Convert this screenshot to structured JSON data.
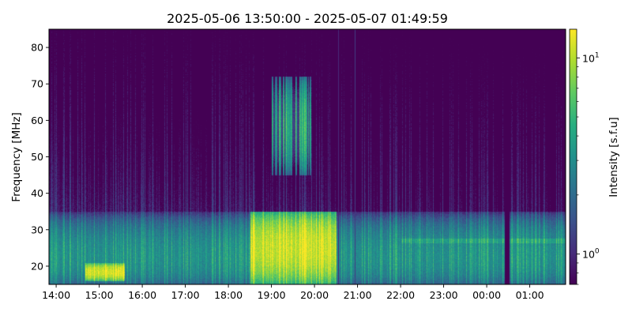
{
  "chart_data": {
    "type": "heatmap",
    "title": "2025-05-06 13:50:00 - 2025-05-07 01:49:59",
    "xlabel": "",
    "ylabel": "Frequency [MHz]",
    "colorbar_label": "Intensity [s.f.u]",
    "colormap": "viridis",
    "color_scale": "log",
    "color_range": [
      0.7,
      14
    ],
    "x_range": [
      "2025-05-06 13:50:00",
      "2025-05-07 01:49:59"
    ],
    "ylim": [
      15,
      85
    ],
    "grid": false,
    "x_ticks": [
      {
        "time": "2025-05-06 14:00",
        "label": "14:00"
      },
      {
        "time": "2025-05-06 15:00",
        "label": "15:00"
      },
      {
        "time": "2025-05-06 16:00",
        "label": "16:00"
      },
      {
        "time": "2025-05-06 17:00",
        "label": "17:00"
      },
      {
        "time": "2025-05-06 18:00",
        "label": "18:00"
      },
      {
        "time": "2025-05-06 19:00",
        "label": "19:00"
      },
      {
        "time": "2025-05-06 20:00",
        "label": "20:00"
      },
      {
        "time": "2025-05-06 21:00",
        "label": "21:00"
      },
      {
        "time": "2025-05-06 22:00",
        "label": "22:00"
      },
      {
        "time": "2025-05-06 23:00",
        "label": "23:00"
      },
      {
        "time": "2025-05-07 00:00",
        "label": "00:00"
      },
      {
        "time": "2025-05-07 01:00",
        "label": "01:00"
      }
    ],
    "y_ticks": [
      {
        "value": 20,
        "label": "20"
      },
      {
        "value": 30,
        "label": "30"
      },
      {
        "value": 40,
        "label": "40"
      },
      {
        "value": 50,
        "label": "50"
      },
      {
        "value": 60,
        "label": "60"
      },
      {
        "value": 70,
        "label": "70"
      },
      {
        "value": 80,
        "label": "80"
      }
    ],
    "colorbar_ticks": [
      {
        "value": 1,
        "label_base": "10",
        "label_exp": "0"
      },
      {
        "value": 10,
        "label_base": "10",
        "label_exp": "1"
      }
    ],
    "features": [
      {
        "kind": "low_frequency_band",
        "freq_range": [
          15,
          35
        ],
        "from": "2025-05-06 13:50",
        "to": "2025-05-07 01:50",
        "intensity": 4.5
      },
      {
        "kind": "emission_patch",
        "freq_range": [
          16,
          21
        ],
        "from": "2025-05-06 14:40",
        "to": "2025-05-06 15:35",
        "intensity": 12
      },
      {
        "kind": "emission_patch",
        "freq_range": [
          15,
          35
        ],
        "from": "2025-05-06 18:30",
        "to": "2025-05-06 20:30",
        "intensity": 11
      },
      {
        "kind": "drifting_emission",
        "freq_range": [
          45,
          72
        ],
        "from": "2025-05-06 19:00",
        "to": "2025-05-06 19:55",
        "intensity": 4
      },
      {
        "kind": "horizontal_band",
        "freq": 27,
        "from": "2025-05-06 22:00",
        "to": "2025-05-07 01:50",
        "intensity": 4
      },
      {
        "kind": "data_gap",
        "from": "2025-05-07 00:25",
        "to": "2025-05-07 00:31",
        "intensity": 0.7
      },
      {
        "kind": "data_gap",
        "from": "2025-05-06 20:32",
        "to": "2025-05-06 20:33",
        "intensity": 1
      },
      {
        "kind": "data_gap",
        "from": "2025-05-06 20:56",
        "to": "2025-05-06 20:57",
        "intensity": 1.2
      }
    ]
  }
}
